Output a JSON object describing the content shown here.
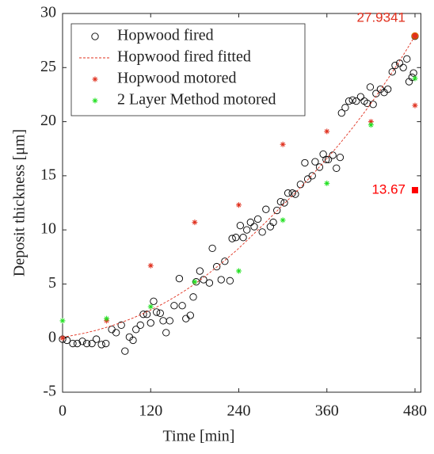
{
  "chart_data": {
    "type": "scatter",
    "xlabel": "Time [min]",
    "ylabel": "Deposit thickness [μm]",
    "xlim": [
      0,
      488
    ],
    "xticks": [
      0,
      120,
      240,
      360,
      480
    ],
    "ylim": [
      -5,
      30
    ],
    "yticks": [
      -5,
      0,
      5,
      10,
      15,
      20,
      25,
      30
    ],
    "legend": "northwest",
    "box": true,
    "series": [
      {
        "name": "Hopwood fired",
        "color": "#000000",
        "marker": "circle",
        "x": [
          0,
          6,
          14,
          20,
          27,
          33,
          40,
          46,
          53,
          59,
          67,
          73,
          80,
          85,
          91,
          96,
          100,
          106,
          110,
          115,
          120,
          124,
          128,
          133,
          137,
          141,
          146,
          152,
          159,
          163,
          168,
          174,
          178,
          182,
          187,
          192,
          200,
          204,
          210,
          216,
          221,
          228,
          231,
          236,
          242,
          246,
          251,
          256,
          261,
          266,
          272,
          277,
          283,
          287,
          292,
          297,
          302,
          307,
          313,
          317,
          324,
          330,
          334,
          340,
          344,
          350,
          355,
          359,
          362,
          368,
          373,
          378,
          380,
          385,
          390,
          395,
          400,
          406,
          411,
          415,
          419,
          423,
          427,
          433,
          438,
          443,
          449,
          453,
          459,
          464,
          469,
          472,
          476,
          478,
          480
        ],
        "values": [
          -0.1,
          -0.2,
          -0.5,
          -0.5,
          -0.3,
          -0.5,
          -0.5,
          -0.1,
          -0.6,
          -0.5,
          0.8,
          0.5,
          1.2,
          -1.2,
          0.1,
          -0.2,
          0.8,
          1.2,
          2.2,
          2.2,
          1.4,
          3.4,
          2.4,
          2.3,
          1.6,
          0.5,
          1.6,
          3.0,
          5.5,
          3.0,
          1.8,
          2.1,
          3.8,
          5.2,
          6.2,
          5.4,
          5.1,
          8.3,
          6.6,
          5.4,
          7.1,
          5.3,
          9.2,
          9.3,
          10.4,
          9.3,
          10.0,
          10.7,
          10.3,
          11.0,
          9.8,
          11.9,
          10.3,
          10.7,
          11.8,
          12.6,
          12.5,
          13.4,
          13.4,
          13.3,
          14.2,
          16.2,
          14.7,
          15.0,
          16.3,
          15.8,
          17.0,
          16.5,
          16.5,
          16.9,
          15.7,
          16.7,
          20.8,
          21.3,
          21.9,
          22.0,
          21.9,
          22.3,
          21.9,
          21.7,
          23.2,
          21.6,
          22.6,
          23.0,
          22.7,
          23.0,
          24.6,
          25.2,
          25.4,
          25.0,
          25.8,
          23.7,
          24.1,
          24.5,
          27.9
        ]
      },
      {
        "name": "Hopwood fired fitted",
        "color": "#e0301e",
        "marker": "dashed-line",
        "x": [
          0,
          60,
          120,
          180,
          240,
          300,
          360,
          420,
          480
        ],
        "values": [
          0.1,
          1.0,
          2.6,
          5.0,
          8.3,
          12.3,
          16.6,
          21.7,
          27.93
        ]
      },
      {
        "name": "Hopwood motored",
        "color": "#e0301e",
        "marker": "asterisk",
        "x": [
          0,
          60,
          120,
          180,
          240,
          300,
          360,
          420,
          480
        ],
        "values": [
          0,
          1.6,
          6.7,
          10.7,
          12.3,
          17.9,
          19.1,
          20.0,
          21.5
        ]
      },
      {
        "name": "2 Layer Method motored",
        "color": "#22e022",
        "marker": "asterisk",
        "x": [
          0,
          60,
          120,
          180,
          240,
          300,
          360,
          420,
          480
        ],
        "values": [
          1.6,
          1.8,
          2.9,
          5.2,
          6.2,
          10.9,
          14.3,
          19.7,
          24.0
        ]
      }
    ],
    "annotations": [
      {
        "x": 480,
        "value": 27.9341,
        "color": "#e0301e",
        "marker": "circle"
      },
      {
        "x": 480,
        "value": 13.67,
        "color": "#ff0000",
        "marker": "square"
      }
    ]
  }
}
